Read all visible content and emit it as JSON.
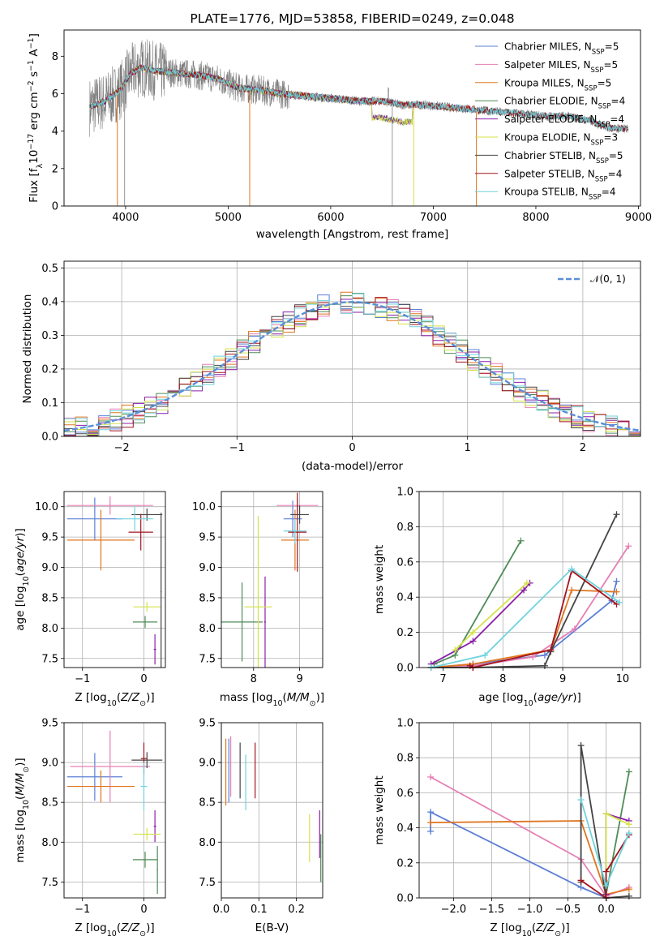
{
  "figure": {
    "title": "PLATE=1776, MJD=53858, FIBERID=0249, z=0.048"
  },
  "colors": {
    "Chabrier MILES": "#5b7fd6",
    "Salpeter MILES": "#e67fb5",
    "Kroupa MILES": "#e0751f",
    "Chabrier ELODIE": "#4f8b58",
    "Salpeter ELODIE": "#8b1fa8",
    "Kroupa ELODIE": "#d4e24a",
    "Chabrier STELIB": "#444444",
    "Salpeter STELIB": "#a3141e",
    "Kroupa STELIB": "#6fd3dd",
    "data": "#808080",
    "normal": "#5b8fd6"
  },
  "chart_data": [
    {
      "id": "spectrum",
      "type": "line",
      "title": "PLATE=1776, MJD=53858, FIBERID=0249, z=0.048",
      "xlabel": "wavelength [Angstrom, rest frame]",
      "ylabel": "Flux [f_λ 10^-17 erg cm^-2 s^-1 A^-1]",
      "xlim": [
        3400,
        9020
      ],
      "ylim": [
        0,
        9.4
      ],
      "xticks": [
        "4000",
        "5000",
        "6000",
        "7000",
        "8000",
        "9000"
      ],
      "yticks": [
        "0",
        "2",
        "4",
        "6",
        "8"
      ],
      "grid": false,
      "legend_position": "right",
      "legend": [
        {
          "name": "Chabrier MILES",
          "label": "Chabrier MILES, N",
          "sub": "SSP",
          "n": "=5"
        },
        {
          "name": "Salpeter MILES",
          "label": "Salpeter MILES, N",
          "sub": "SSP",
          "n": "=5"
        },
        {
          "name": "Kroupa MILES",
          "label": "Kroupa MILES, N",
          "sub": "SSP",
          "n": "=5"
        },
        {
          "name": "Chabrier ELODIE",
          "label": "Chabrier ELODIE, N",
          "sub": "SSP",
          "n": "=4"
        },
        {
          "name": "Salpeter ELODIE",
          "label": "Salpeter ELODIE, N",
          "sub": "SSP",
          "n": "=4"
        },
        {
          "name": "Kroupa ELODIE",
          "label": "Kroupa ELODIE, N",
          "sub": "SSP",
          "n": "=3"
        },
        {
          "name": "Chabrier STELIB",
          "label": "Chabrier STELIB, N",
          "sub": "SSP",
          "n": "=5"
        },
        {
          "name": "Salpeter STELIB",
          "label": "Salpeter STELIB, N",
          "sub": "SSP",
          "n": "=4"
        },
        {
          "name": "Kroupa STELIB",
          "label": "Kroupa STELIB, N",
          "sub": "SSP",
          "n": "=4"
        }
      ],
      "continuum": {
        "x": [
          3650,
          3800,
          3950,
          4050,
          4150,
          4300,
          4500,
          4700,
          4900,
          5100,
          5300,
          5500,
          5700,
          5900,
          6100,
          6300,
          6500,
          6700,
          6900,
          7100,
          7300,
          7500,
          7700,
          7900,
          8100,
          8300,
          8500,
          8700,
          8900
        ],
        "y": [
          5.3,
          5.6,
          6.2,
          7.1,
          7.4,
          7.2,
          7.1,
          7.0,
          6.8,
          6.3,
          6.2,
          6.0,
          5.9,
          5.8,
          5.7,
          5.6,
          5.6,
          5.4,
          5.4,
          5.3,
          5.2,
          5.1,
          5.0,
          4.9,
          4.8,
          4.8,
          4.6,
          4.2,
          4.1
        ]
      }
    },
    {
      "id": "residuals",
      "type": "line",
      "xlabel": "(data-model)/error",
      "ylabel": "Normed distribution",
      "xlim": [
        -2.5,
        2.5
      ],
      "ylim": [
        0,
        0.52
      ],
      "xticks": [
        "−2",
        "−1",
        "0",
        "1",
        "2"
      ],
      "yticks": [
        "0.0",
        "0.1",
        "0.2",
        "0.3",
        "0.4",
        "0.5"
      ],
      "grid": true,
      "legend_position": "top-right",
      "legend": [
        {
          "name": "normal",
          "label": "𝒩(0, 1)"
        }
      ],
      "bin_width": 0.1
    },
    {
      "id": "age-vs-Z",
      "type": "scatter",
      "xlabel": "Z [log10(Z/Z⊙)]",
      "ylabel": "age [log10(age/yr)]",
      "xlim": [
        -1.3,
        0.35
      ],
      "ylim": [
        7.35,
        10.25
      ],
      "xticks": [
        "−1",
        "0"
      ],
      "yticks": [
        "7.5",
        "8.0",
        "8.5",
        "9.0",
        "9.5",
        "10.0"
      ],
      "grid": true,
      "points": [
        {
          "series": "Chabrier MILES",
          "x": -0.8,
          "y": 9.8,
          "xerr": 0.45,
          "yerr": 0.35
        },
        {
          "series": "Salpeter MILES",
          "x": -0.55,
          "y": 10.02,
          "xerr": 0.7,
          "yerr": 0.15
        },
        {
          "series": "Kroupa MILES",
          "x": -0.7,
          "y": 9.45,
          "xerr": 0.55,
          "yerr": 0.5
        },
        {
          "series": "Chabrier ELODIE",
          "x": 0.02,
          "y": 8.1,
          "xerr": 0.2,
          "yerr": 0.1
        },
        {
          "series": "Salpeter ELODIE",
          "x": 0.18,
          "y": 7.65,
          "xerr": 0.02,
          "yerr": 0.25
        },
        {
          "series": "Kroupa ELODIE",
          "x": 0.05,
          "y": 8.35,
          "xerr": 0.22,
          "yerr": 0.08
        },
        {
          "series": "Chabrier STELIB",
          "x": 0.05,
          "y": 9.87,
          "xerr": 0.25,
          "yerr": 0.1
        },
        {
          "series": "Salpeter STELIB",
          "x": -0.05,
          "y": 9.58,
          "xerr": 0.2,
          "yerr": 0.3
        },
        {
          "series": "Kroupa STELIB",
          "x": -0.15,
          "y": 9.8,
          "xerr": 0.3,
          "yerr": 0.2
        },
        {
          "series": "Chabrier STELIB",
          "x": 0.28,
          "y": 8.6,
          "xerr": 0.01,
          "yerr": 1.3
        }
      ]
    },
    {
      "id": "age-vs-mass",
      "type": "scatter",
      "xlabel": "mass [log10(M/M⊙)]",
      "ylabel": "",
      "xlim": [
        7.3,
        9.5
      ],
      "ylim": [
        7.35,
        10.25
      ],
      "xticks": [
        "8",
        "9"
      ],
      "yticks": [
        "7.5",
        "8.0",
        "8.5",
        "9.0",
        "9.5",
        "10.0"
      ],
      "grid": true,
      "points": [
        {
          "series": "Chabrier MILES",
          "x": 8.85,
          "y": 9.8,
          "xerr": 0.2,
          "yerr": 0.3
        },
        {
          "series": "Salpeter MILES",
          "x": 8.95,
          "y": 10.02,
          "xerr": 0.45,
          "yerr": 0.12
        },
        {
          "series": "Kroupa MILES",
          "x": 8.9,
          "y": 9.45,
          "xerr": 0.3,
          "yerr": 0.5
        },
        {
          "series": "Chabrier ELODIE",
          "x": 7.75,
          "y": 8.1,
          "xerr": 0.45,
          "yerr": 0.65
        },
        {
          "series": "Salpeter ELODIE",
          "x": 8.25,
          "y": 8.1,
          "xerr": 0.02,
          "yerr": 0.75
        },
        {
          "series": "Kroupa ELODIE",
          "x": 8.1,
          "y": 8.35,
          "xerr": 0.3,
          "yerr": 1.5
        },
        {
          "series": "Chabrier STELIB",
          "x": 9.0,
          "y": 9.87,
          "xerr": 0.2,
          "yerr": 0.15
        },
        {
          "series": "Salpeter STELIB",
          "x": 8.95,
          "y": 9.58,
          "xerr": 0.2,
          "yerr": 0.65
        },
        {
          "series": "Kroupa STELIB",
          "x": 8.9,
          "y": 9.6,
          "xerr": 0.25,
          "yerr": 0.2
        }
      ]
    },
    {
      "id": "mass-weight-vs-age",
      "type": "line",
      "xlabel": "age [log10(age/yr)]",
      "ylabel": "mass weight",
      "xlim": [
        6.6,
        10.3
      ],
      "ylim": [
        0,
        1.0
      ],
      "xticks": [
        "7",
        "8",
        "9",
        "10"
      ],
      "yticks": [
        "0.0",
        "0.2",
        "0.4",
        "0.6",
        "0.8",
        "1.0"
      ],
      "grid": true,
      "series": [
        {
          "name": "Chabrier MILES",
          "x": [
            6.8,
            7.5,
            8.7,
            9.82,
            9.9
          ],
          "y": [
            0.0,
            0.02,
            0.07,
            0.38,
            0.49
          ]
        },
        {
          "name": "Salpeter MILES",
          "x": [
            6.8,
            7.5,
            8.5,
            9.2,
            10.1
          ],
          "y": [
            0.0,
            0.01,
            0.06,
            0.22,
            0.69
          ]
        },
        {
          "name": "Kroupa MILES",
          "x": [
            6.8,
            7.5,
            8.8,
            9.15,
            9.9
          ],
          "y": [
            0.0,
            0.02,
            0.1,
            0.44,
            0.43
          ]
        },
        {
          "name": "Chabrier ELODIE",
          "x": [
            6.85,
            7.2,
            8.3
          ],
          "y": [
            0.02,
            0.07,
            0.72
          ]
        },
        {
          "name": "Salpeter ELODIE",
          "x": [
            6.8,
            7.5,
            8.35,
            8.45
          ],
          "y": [
            0.02,
            0.15,
            0.44,
            0.48
          ]
        },
        {
          "name": "Kroupa ELODIE",
          "x": [
            7.2,
            7.5,
            8.4
          ],
          "y": [
            0.1,
            0.2,
            0.48
          ]
        },
        {
          "name": "Chabrier STELIB",
          "x": [
            6.8,
            7.5,
            8.7,
            8.8,
            9.9
          ],
          "y": [
            0.0,
            0.0,
            0.01,
            0.09,
            0.87
          ]
        },
        {
          "name": "Salpeter STELIB",
          "x": [
            7.45,
            7.5,
            8.8,
            9.15,
            9.9
          ],
          "y": [
            0.01,
            0.0,
            0.1,
            0.55,
            0.36
          ]
        },
        {
          "name": "Kroupa STELIB",
          "x": [
            6.8,
            7.7,
            9.15,
            9.95
          ],
          "y": [
            0.0,
            0.07,
            0.56,
            0.37
          ]
        }
      ]
    },
    {
      "id": "mass-vs-Z",
      "type": "scatter",
      "xlabel": "Z [log10(Z/Z⊙)]",
      "ylabel": "mass [log10(M/M⊙)]",
      "xlim": [
        -1.3,
        0.35
      ],
      "ylim": [
        7.3,
        9.5
      ],
      "xticks": [
        "−1",
        "0"
      ],
      "yticks": [
        "7.5",
        "8.0",
        "8.5",
        "9.0",
        "9.5"
      ],
      "grid": true,
      "points": [
        {
          "series": "Chabrier MILES",
          "x": -0.8,
          "y": 8.82,
          "xerr": 0.45,
          "yerr": 0.3
        },
        {
          "series": "Salpeter MILES",
          "x": -0.55,
          "y": 8.95,
          "xerr": 0.65,
          "yerr": 0.45
        },
        {
          "series": "Kroupa MILES",
          "x": -0.7,
          "y": 8.7,
          "xerr": 0.55,
          "yerr": 0.2
        },
        {
          "series": "Chabrier ELODIE",
          "x": 0.02,
          "y": 7.78,
          "xerr": 0.2,
          "yerr": 0.1
        },
        {
          "series": "Salpeter ELODIE",
          "x": 0.18,
          "y": 8.2,
          "xerr": 0.02,
          "yerr": 0.2
        },
        {
          "series": "Kroupa ELODIE",
          "x": 0.05,
          "y": 8.1,
          "xerr": 0.22,
          "yerr": 0.08
        },
        {
          "series": "Chabrier STELIB",
          "x": 0.05,
          "y": 9.03,
          "xerr": 0.25,
          "yerr": 0.1
        },
        {
          "series": "Salpeter STELIB",
          "x": 0.0,
          "y": 9.05,
          "xerr": 0.05,
          "yerr": 0.2
        },
        {
          "series": "Kroupa STELIB",
          "x": 0.0,
          "y": 8.7,
          "xerr": 0.05,
          "yerr": 0.3
        },
        {
          "series": "Chabrier ELODIE",
          "x": 0.22,
          "y": 7.65,
          "xerr": 0.01,
          "yerr": 0.3
        }
      ]
    },
    {
      "id": "mass-vs-EBV",
      "type": "scatter",
      "xlabel": "E(B-V)",
      "ylabel": "",
      "xlim": [
        0.0,
        0.27
      ],
      "ylim": [
        7.3,
        9.5
      ],
      "xticks": [
        "0.0",
        "0.1",
        "0.2"
      ],
      "yticks": [
        "7.5",
        "8.0",
        "8.5",
        "9.0",
        "9.5"
      ],
      "grid": true,
      "points": [
        {
          "series": "Chabrier MILES",
          "x": 0.02,
          "y": 8.9,
          "xerr": 0,
          "yerr": 0.4
        },
        {
          "series": "Salpeter MILES",
          "x": 0.025,
          "y": 8.95,
          "xerr": 0,
          "yerr": 0.38
        },
        {
          "series": "Kroupa MILES",
          "x": 0.012,
          "y": 8.88,
          "xerr": 0,
          "yerr": 0.42
        },
        {
          "series": "Chabrier ELODIE",
          "x": 0.265,
          "y": 7.8,
          "xerr": 0,
          "yerr": 0.3
        },
        {
          "series": "Salpeter ELODIE",
          "x": 0.262,
          "y": 8.1,
          "xerr": 0,
          "yerr": 0.3
        },
        {
          "series": "Kroupa ELODIE",
          "x": 0.235,
          "y": 8.05,
          "xerr": 0,
          "yerr": 0.3
        },
        {
          "series": "Chabrier STELIB",
          "x": 0.05,
          "y": 8.9,
          "xerr": 0,
          "yerr": 0.35
        },
        {
          "series": "Salpeter STELIB",
          "x": 0.09,
          "y": 8.9,
          "xerr": 0,
          "yerr": 0.35
        },
        {
          "series": "Kroupa STELIB",
          "x": 0.065,
          "y": 8.75,
          "xerr": 0,
          "yerr": 0.35
        }
      ]
    },
    {
      "id": "mass-weight-vs-Z",
      "type": "line",
      "xlabel": "Z [log10(Z/Z⊙)]",
      "ylabel": "mass weight",
      "xlim": [
        -2.45,
        0.45
      ],
      "ylim": [
        0,
        1.0
      ],
      "xticks": [
        "−2.0",
        "−1.5",
        "−1.0",
        "−0.5",
        "0.0"
      ],
      "yticks": [
        "0.0",
        "0.2",
        "0.4",
        "0.6",
        "0.8",
        "1.0"
      ],
      "grid": true,
      "series": [
        {
          "name": "Chabrier MILES",
          "x": [
            -2.3,
            -2.3,
            -0.33,
            0.0,
            0.0
          ],
          "y": [
            0.38,
            0.49,
            0.06,
            0.0,
            0.0
          ]
        },
        {
          "name": "Salpeter MILES",
          "x": [
            -2.3,
            -0.33,
            0.0,
            0.3
          ],
          "y": [
            0.69,
            0.22,
            0.01,
            0.06
          ]
        },
        {
          "name": "Kroupa MILES",
          "x": [
            -2.3,
            -0.33,
            0.0,
            0.3
          ],
          "y": [
            0.43,
            0.44,
            0.02,
            0.05
          ]
        },
        {
          "name": "Chabrier ELODIE",
          "x": [
            0.0,
            0.3
          ],
          "y": [
            0.02,
            0.72
          ]
        },
        {
          "name": "Salpeter ELODIE",
          "x": [
            0.0,
            0.0,
            0.3
          ],
          "y": [
            0.02,
            0.48,
            0.44
          ]
        },
        {
          "name": "Kroupa ELODIE",
          "x": [
            0.0,
            0.0,
            0.3
          ],
          "y": [
            0.1,
            0.48,
            0.42
          ]
        },
        {
          "name": "Chabrier STELIB",
          "x": [
            -0.33,
            -0.33,
            0.0,
            0.3
          ],
          "y": [
            0.09,
            0.87,
            0.0,
            0.01
          ]
        },
        {
          "name": "Salpeter STELIB",
          "x": [
            -0.33,
            0.0,
            0.0,
            0.3
          ],
          "y": [
            0.1,
            0.0,
            0.15,
            0.36
          ]
        },
        {
          "name": "Kroupa STELIB",
          "x": [
            -0.33,
            0.0,
            0.3
          ],
          "y": [
            0.56,
            0.07,
            0.37
          ]
        }
      ]
    }
  ]
}
